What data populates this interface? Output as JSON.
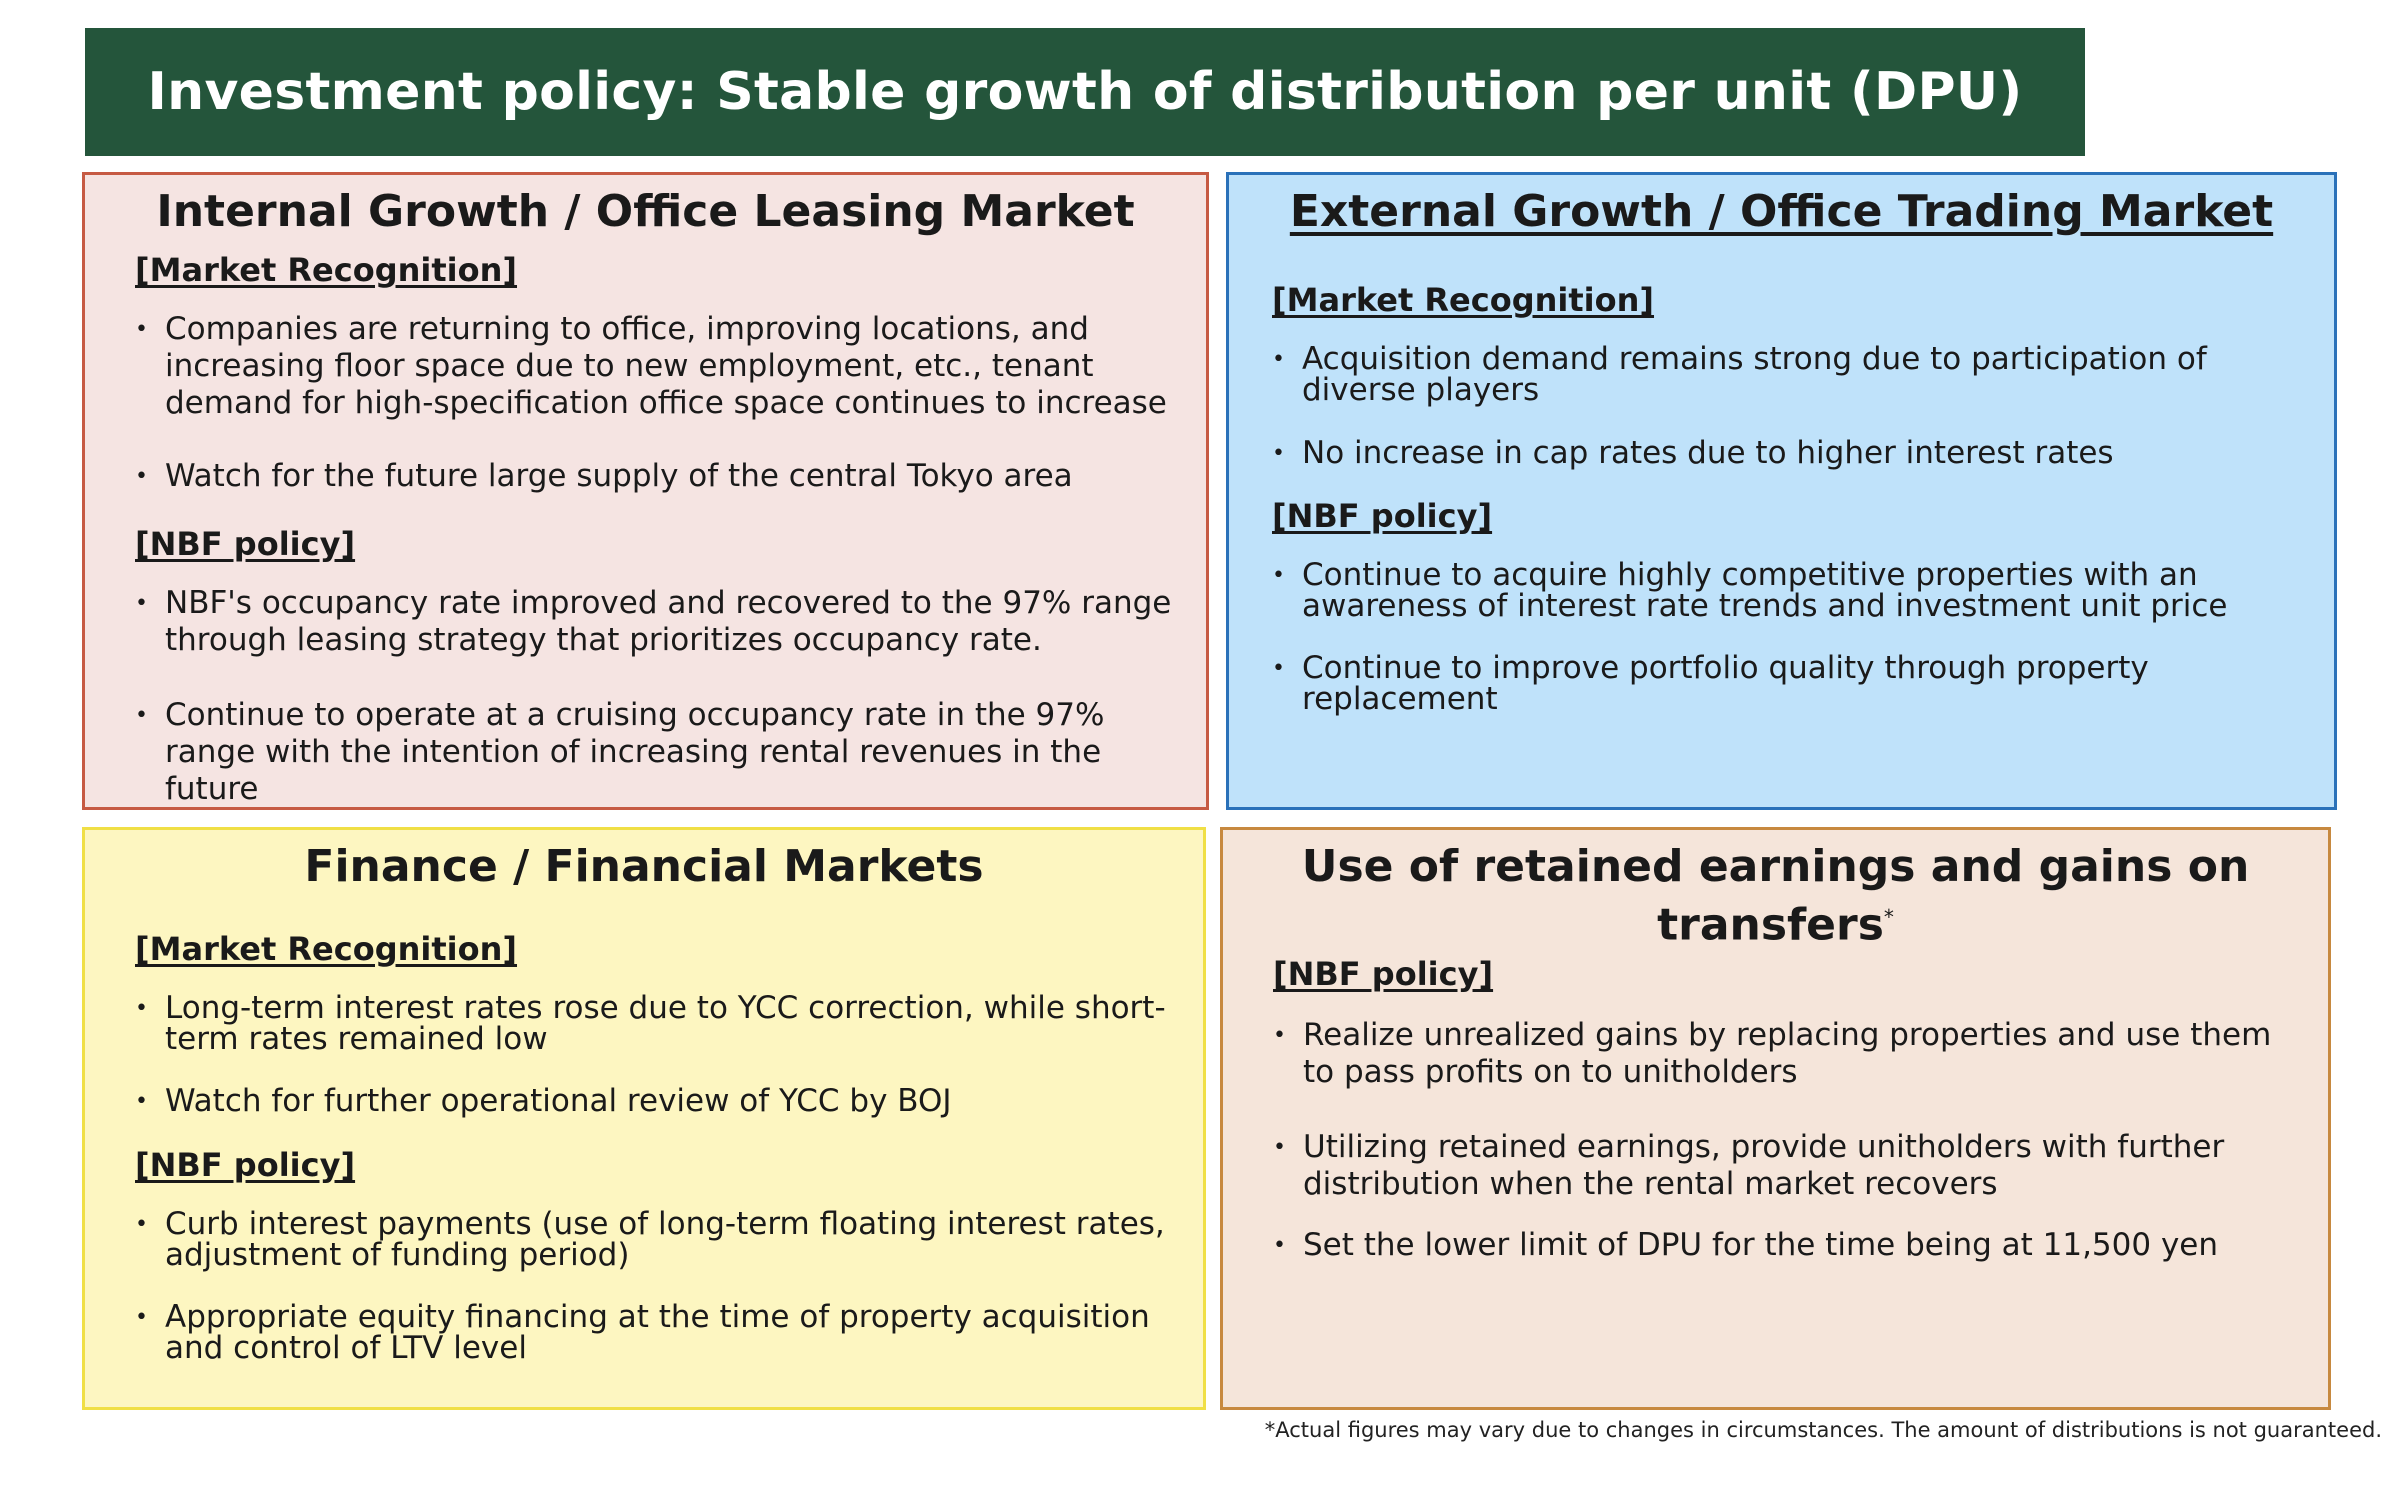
{
  "banner": {
    "title": "Investment policy: Stable growth of distribution per unit (DPU)"
  },
  "panels": {
    "internal": {
      "title": "Internal Growth / Office Leasing Market",
      "market_heading": "[Market Recognition]",
      "market_items": [
        "Companies are returning to office, improving locations, and increasing floor space due to new employment, etc., tenant demand for high-specification office space continues to increase",
        "Watch for the future large supply of the central Tokyo area"
      ],
      "policy_heading": "[NBF policy]",
      "policy_items": [
        "NBF's occupancy rate improved and recovered to the 97% range through leasing strategy that prioritizes occupancy rate.",
        "Continue to operate at a cruising occupancy rate in the 97% range with the intention of increasing rental revenues in the future"
      ]
    },
    "external": {
      "title": "External Growth / Office Trading Market",
      "market_heading": "[Market Recognition]",
      "market_items": [
        "Acquisition demand remains strong due to participation of diverse players",
        "No increase in cap rates due to higher interest rates"
      ],
      "policy_heading": "[NBF policy]",
      "policy_items": [
        "Continue to acquire highly competitive properties with an awareness of interest rate trends and investment unit price",
        "Continue to improve portfolio quality through property replacement"
      ]
    },
    "finance": {
      "title": "Finance / Financial Markets",
      "market_heading": "[Market Recognition]",
      "market_items": [
        "Long-term interest rates rose due to YCC correction, while short-term rates remained low",
        "Watch for further operational review of YCC by BOJ"
      ],
      "policy_heading": "[NBF policy]",
      "policy_items": [
        "Curb interest payments (use of long-term floating interest rates, adjustment of funding period)",
        "Appropriate equity financing at the time of property acquisition and control of LTV level"
      ]
    },
    "retained": {
      "title_line1": "Use of retained earnings and gains on",
      "title_line2": "transfers",
      "title_mark": "*",
      "policy_heading": "[NBF policy]",
      "policy_items": [
        "Realize unrealized gains by replacing properties and use them to pass profits on to unitholders",
        "Utilizing retained earnings, provide unitholders with further distribution when the rental market recovers",
        "Set the lower limit of DPU for the time being at 11,500 yen"
      ]
    }
  },
  "bullet_glyph": "•",
  "footnote": "*Actual figures may vary due to changes in circumstances. The amount of distributions is not guaranteed."
}
